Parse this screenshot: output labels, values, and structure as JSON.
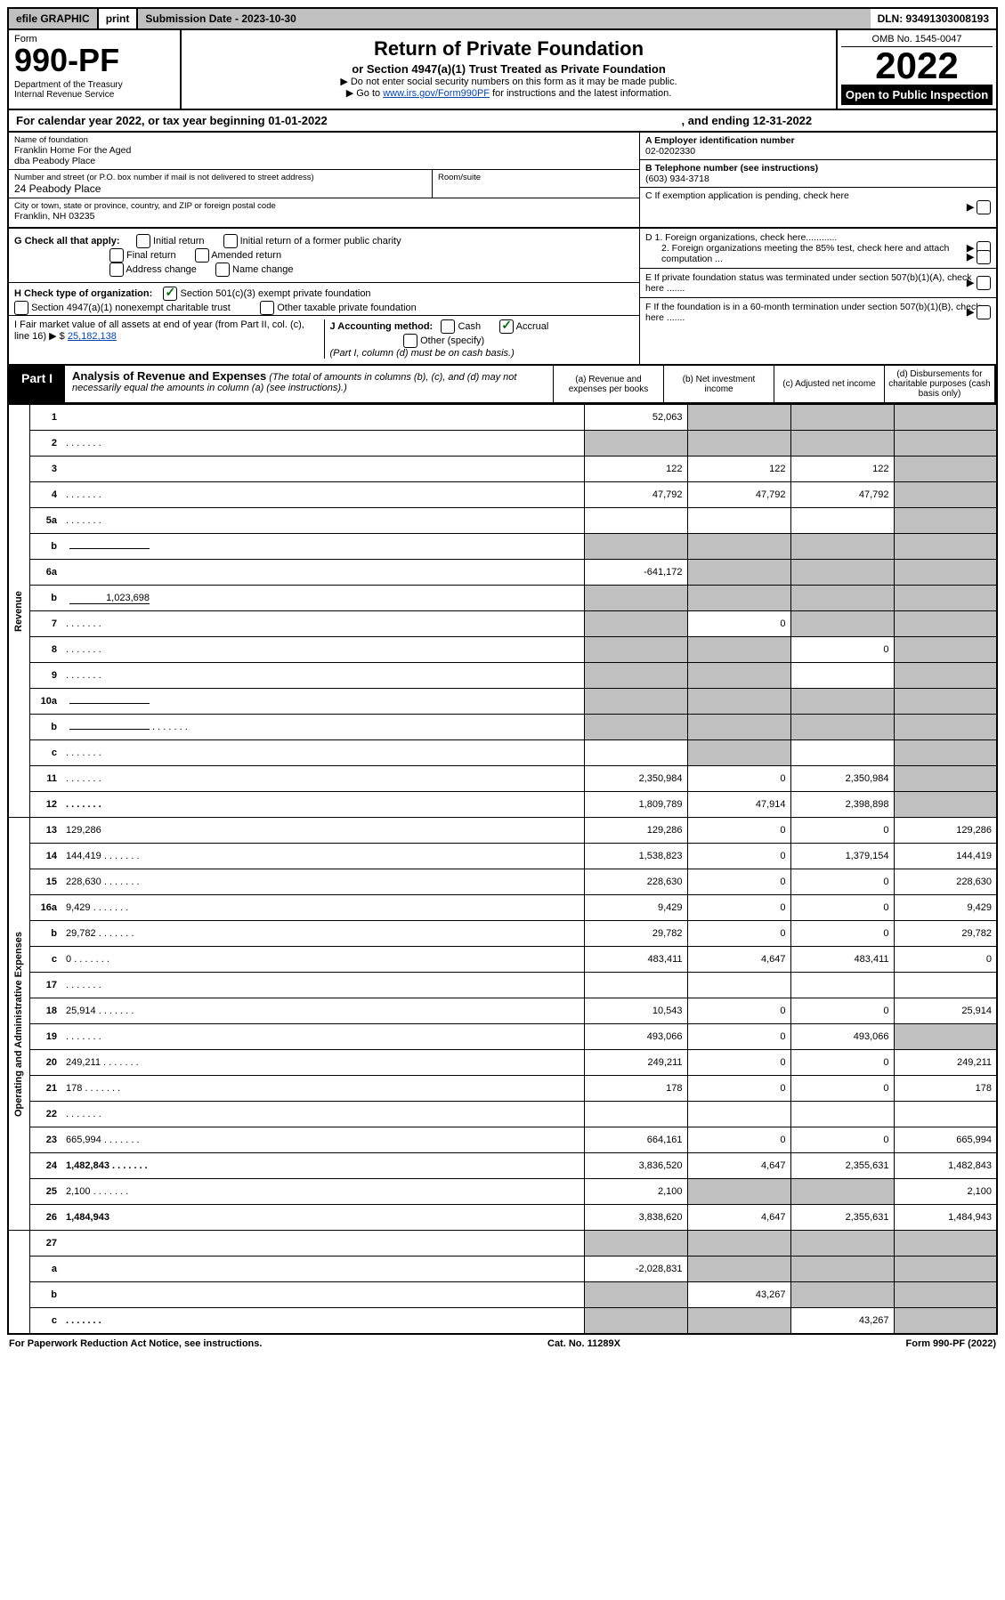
{
  "topbar": {
    "efile": "efile GRAPHIC",
    "print": "print",
    "submission_label": "Submission Date - 2023-10-30",
    "dln": "DLN: 93491303008193"
  },
  "header": {
    "form_label": "Form",
    "form_number": "990-PF",
    "dept": "Department of the Treasury\nInternal Revenue Service",
    "title": "Return of Private Foundation",
    "subtitle": "or Section 4947(a)(1) Trust Treated as Private Foundation",
    "note1": "▶ Do not enter social security numbers on this form as it may be made public.",
    "note2_pre": "▶ Go to ",
    "note2_link": "www.irs.gov/Form990PF",
    "note2_post": " for instructions and the latest information.",
    "omb": "OMB No. 1545-0047",
    "year": "2022",
    "open": "Open to Public Inspection"
  },
  "calendar": {
    "text_pre": "For calendar year 2022, or tax year beginning 01-01-2022",
    "text_mid": ", and ending 12-31-2022"
  },
  "identity": {
    "name_label": "Name of foundation",
    "name": "Franklin Home For the Aged\ndba Peabody Place",
    "addr_label": "Number and street (or P.O. box number if mail is not delivered to street address)",
    "addr": "24 Peabody Place",
    "room_label": "Room/suite",
    "city_label": "City or town, state or province, country, and ZIP or foreign postal code",
    "city": "Franklin, NH  03235",
    "ein_label": "A Employer identification number",
    "ein": "02-0202330",
    "phone_label": "B Telephone number (see instructions)",
    "phone": "(603) 934-3718",
    "c_label": "C If exemption application is pending, check here",
    "d1_label": "D 1. Foreign organizations, check here............",
    "d2_label": "2. Foreign organizations meeting the 85% test, check here and attach computation ...",
    "e_label": "E  If private foundation status was terminated under section 507(b)(1)(A), check here .......",
    "f_label": "F  If the foundation is in a 60-month termination under section 507(b)(1)(B), check here ......."
  },
  "sectionG": {
    "g_label": "G Check all that apply:",
    "initial_return": "Initial return",
    "initial_former": "Initial return of a former public charity",
    "final_return": "Final return",
    "amended": "Amended return",
    "addr_change": "Address change",
    "name_change": "Name change",
    "h_label": "H Check type of organization:",
    "h_501c3": "Section 501(c)(3) exempt private foundation",
    "h_4947": "Section 4947(a)(1) nonexempt charitable trust",
    "h_other": "Other taxable private foundation",
    "i_label": "I Fair market value of all assets at end of year (from Part II, col. (c), line 16) ▶ $",
    "i_value": "25,182,138",
    "j_label": "J Accounting method:",
    "j_cash": "Cash",
    "j_accrual": "Accrual",
    "j_other": "Other (specify)",
    "j_note": "(Part I, column (d) must be on cash basis.)"
  },
  "part1": {
    "label": "Part I",
    "title": "Analysis of Revenue and Expenses",
    "desc": " (The total of amounts in columns (b), (c), and (d) may not necessarily equal the amounts in column (a) (see instructions).)",
    "col_a": "(a)  Revenue and expenses per books",
    "col_b": "(b)  Net investment income",
    "col_c": "(c)  Adjusted net income",
    "col_d": "(d)  Disbursements for charitable purposes (cash basis only)"
  },
  "vert": {
    "revenue": "Revenue",
    "expenses": "Operating and Administrative Expenses"
  },
  "rows": [
    {
      "n": "1",
      "d": "",
      "a": "52,063",
      "b": "",
      "c": "",
      "bg": "g",
      "cg": "g",
      "dg": "g"
    },
    {
      "n": "2",
      "d": "",
      "dots": true,
      "a": "",
      "b": "",
      "c": "",
      "ag": "g",
      "bg": "g",
      "cg": "g",
      "dg": "g"
    },
    {
      "n": "3",
      "d": "",
      "a": "122",
      "b": "122",
      "c": "122",
      "dg": "g"
    },
    {
      "n": "4",
      "d": "",
      "dots": true,
      "a": "47,792",
      "b": "47,792",
      "c": "47,792",
      "dg": "g"
    },
    {
      "n": "5a",
      "d": "",
      "dots": true,
      "a": "",
      "b": "",
      "c": "",
      "dg": "g"
    },
    {
      "n": "b",
      "d": "",
      "sub": "",
      "a": "",
      "b": "",
      "c": "",
      "ag": "g",
      "bg": "g",
      "cg": "g",
      "dg": "g"
    },
    {
      "n": "6a",
      "d": "",
      "a": "-641,172",
      "b": "",
      "c": "",
      "bg": "g",
      "cg": "g",
      "dg": "g"
    },
    {
      "n": "b",
      "d": "",
      "sub": "1,023,698",
      "a": "",
      "b": "",
      "c": "",
      "ag": "g",
      "bg": "g",
      "cg": "g",
      "dg": "g"
    },
    {
      "n": "7",
      "d": "",
      "dots": true,
      "a": "",
      "b": "0",
      "c": "",
      "ag": "g",
      "cg": "g",
      "dg": "g"
    },
    {
      "n": "8",
      "d": "",
      "dots": true,
      "a": "",
      "b": "",
      "c": "0",
      "ag": "g",
      "bg": "g",
      "dg": "g"
    },
    {
      "n": "9",
      "d": "",
      "dots": true,
      "a": "",
      "b": "",
      "c": "",
      "ag": "g",
      "bg": "g",
      "dg": "g"
    },
    {
      "n": "10a",
      "d": "",
      "sub": "",
      "a": "",
      "b": "",
      "c": "",
      "ag": "g",
      "bg": "g",
      "cg": "g",
      "dg": "g"
    },
    {
      "n": "b",
      "d": "",
      "dots": true,
      "sub": "",
      "a": "",
      "b": "",
      "c": "",
      "ag": "g",
      "bg": "g",
      "cg": "g",
      "dg": "g"
    },
    {
      "n": "c",
      "d": "",
      "dots": true,
      "a": "",
      "b": "",
      "c": "",
      "bg": "g",
      "dg": "g"
    },
    {
      "n": "11",
      "d": "",
      "dots": true,
      "a": "2,350,984",
      "b": "0",
      "c": "2,350,984",
      "dg": "g"
    },
    {
      "n": "12",
      "d": "",
      "dots": true,
      "bold": true,
      "a": "1,809,789",
      "b": "47,914",
      "c": "2,398,898",
      "dg": "g"
    }
  ],
  "exp_rows": [
    {
      "n": "13",
      "d": "129,286",
      "a": "129,286",
      "b": "0",
      "c": "0"
    },
    {
      "n": "14",
      "d": "144,419",
      "dots": true,
      "a": "1,538,823",
      "b": "0",
      "c": "1,379,154"
    },
    {
      "n": "15",
      "d": "228,630",
      "dots": true,
      "a": "228,630",
      "b": "0",
      "c": "0"
    },
    {
      "n": "16a",
      "d": "9,429",
      "dots": true,
      "a": "9,429",
      "b": "0",
      "c": "0"
    },
    {
      "n": "b",
      "d": "29,782",
      "dots": true,
      "a": "29,782",
      "b": "0",
      "c": "0"
    },
    {
      "n": "c",
      "d": "0",
      "dots": true,
      "a": "483,411",
      "b": "4,647",
      "c": "483,411"
    },
    {
      "n": "17",
      "d": "",
      "dots": true,
      "a": "",
      "b": "",
      "c": ""
    },
    {
      "n": "18",
      "d": "25,914",
      "dots": true,
      "a": "10,543",
      "b": "0",
      "c": "0"
    },
    {
      "n": "19",
      "d": "",
      "dots": true,
      "a": "493,066",
      "b": "0",
      "c": "493,066",
      "dg": "g"
    },
    {
      "n": "20",
      "d": "249,211",
      "dots": true,
      "a": "249,211",
      "b": "0",
      "c": "0"
    },
    {
      "n": "21",
      "d": "178",
      "dots": true,
      "a": "178",
      "b": "0",
      "c": "0"
    },
    {
      "n": "22",
      "d": "",
      "dots": true,
      "a": "",
      "b": "",
      "c": ""
    },
    {
      "n": "23",
      "d": "665,994",
      "dots": true,
      "a": "664,161",
      "b": "0",
      "c": "0"
    },
    {
      "n": "24",
      "d": "1,482,843",
      "dots": true,
      "bold": true,
      "a": "3,836,520",
      "b": "4,647",
      "c": "2,355,631"
    },
    {
      "n": "25",
      "d": "2,100",
      "dots": true,
      "a": "2,100",
      "b": "",
      "c": "",
      "bg": "g",
      "cg": "g"
    },
    {
      "n": "26",
      "d": "1,484,943",
      "bold": true,
      "a": "3,838,620",
      "b": "4,647",
      "c": "2,355,631"
    }
  ],
  "bottom_rows": [
    {
      "n": "27",
      "d": "",
      "a": "",
      "b": "",
      "c": "",
      "ag": "g",
      "bg": "g",
      "cg": "g",
      "dg": "g"
    },
    {
      "n": "a",
      "d": "",
      "bold": true,
      "a": "-2,028,831",
      "b": "",
      "c": "",
      "bg": "g",
      "cg": "g",
      "dg": "g"
    },
    {
      "n": "b",
      "d": "",
      "bold": true,
      "a": "",
      "b": "43,267",
      "c": "",
      "ag": "g",
      "cg": "g",
      "dg": "g"
    },
    {
      "n": "c",
      "d": "",
      "dots": true,
      "bold": true,
      "a": "",
      "b": "",
      "c": "43,267",
      "ag": "g",
      "bg": "g",
      "dg": "g"
    }
  ],
  "footer": {
    "left": "For Paperwork Reduction Act Notice, see instructions.",
    "center": "Cat. No. 11289X",
    "right": "Form 990-PF (2022)"
  },
  "colors": {
    "grey": "#c0c0c0",
    "link": "#0645ad",
    "check": "#0a6b0a"
  }
}
